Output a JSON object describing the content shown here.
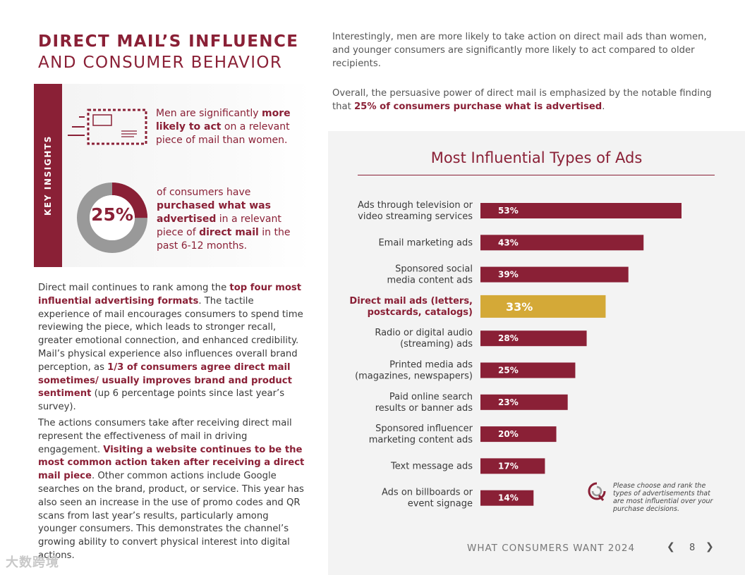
{
  "title": {
    "line1": "DIRECT MAIL’S INFLUENCE",
    "line2": "AND CONSUMER BEHAVIOR"
  },
  "key_insights": {
    "heading": "KEY INSIGHTS",
    "insight1": {
      "pre": "Men are significantly ",
      "bold": "more likely to act",
      "post": " on a relevant piece of mail than women."
    },
    "stat": {
      "value": "25%",
      "percent": 25
    },
    "insight2": {
      "pre": "of consumers have ",
      "bold1": "purchased what was advertised",
      "mid": " in a relevant piece of ",
      "bold2": "direct mail",
      "post": " in the past 6-12 months."
    }
  },
  "body": {
    "para1": {
      "t1": "Direct mail continues to rank among the ",
      "b1": "top four most influential advertising formats",
      "t2": ". The tactile experience of mail encourages consumers to spend time reviewing the piece, which leads to stronger recall, greater emotional connection, and enhanced credibility. Mail’s physical experience also influences overall brand perception, as ",
      "b2": "1/3 of consumers agree direct mail sometimes/ usually improves brand and product sentiment",
      "t3": " (up 6 percentage points since last year’s survey)."
    },
    "para2": {
      "t1": "The actions consumers take after receiving direct mail represent the effectiveness of mail in driving engagement. ",
      "b1": "Visiting a website continues to be the most common action taken after receiving a direct mail piece",
      "t2": ". Other common actions include Google searches on the brand, product, or service. This year has also seen an increase in the use of promo codes and QR scans from last year’s results, particularly among younger consumers. This demonstrates the channel’s growing ability to convert physical interest into digital actions."
    }
  },
  "intro": {
    "p1": "Interestingly, men are more likely to take action on direct mail ads than women, and younger consumers are significantly more likely to act compared to older recipients.",
    "p2_pre": "Overall, the persuasive power of direct mail is emphasized by the notable finding that ",
    "p2_bold": "25% of consumers purchase what is advertised",
    "p2_post": "."
  },
  "chart_data": {
    "type": "bar",
    "orientation": "horizontal",
    "title": "Most Influential Types of Ads",
    "categories": [
      [
        "Ads through television or",
        "video streaming services"
      ],
      [
        "Email marketing ads"
      ],
      [
        "Sponsored social",
        "media content ads"
      ],
      [
        "Direct mail ads (letters,",
        "postcards, catalogs)"
      ],
      [
        "Radio or digital audio",
        "(streaming) ads"
      ],
      [
        "Printed media ads",
        "(magazines, newspapers)"
      ],
      [
        "Paid online search",
        "results or banner ads"
      ],
      [
        "Sponsored influencer",
        "marketing content ads"
      ],
      [
        "Text message ads"
      ],
      [
        "Ads on billboards or",
        "event signage"
      ]
    ],
    "values": [
      53,
      43,
      39,
      33,
      28,
      25,
      23,
      20,
      17,
      14
    ],
    "value_labels": [
      "53%",
      "43%",
      "39%",
      "33%",
      "28%",
      "25%",
      "23%",
      "20%",
      "17%",
      "14%"
    ],
    "highlight_index": 3,
    "colors": {
      "bar": "#8a2036",
      "highlight": "#d4a937"
    },
    "xlabel": "",
    "ylabel": ""
  },
  "chart_note": "Please choose and rank the types of advertisements that are most influential over your purchase decisions.",
  "footer": {
    "text": "WHAT CONSUMERS WANT 2024",
    "page": "8",
    "prev_icon": "chevron-left-icon",
    "next_icon": "chevron-right-icon"
  },
  "watermark": "大数跨境"
}
